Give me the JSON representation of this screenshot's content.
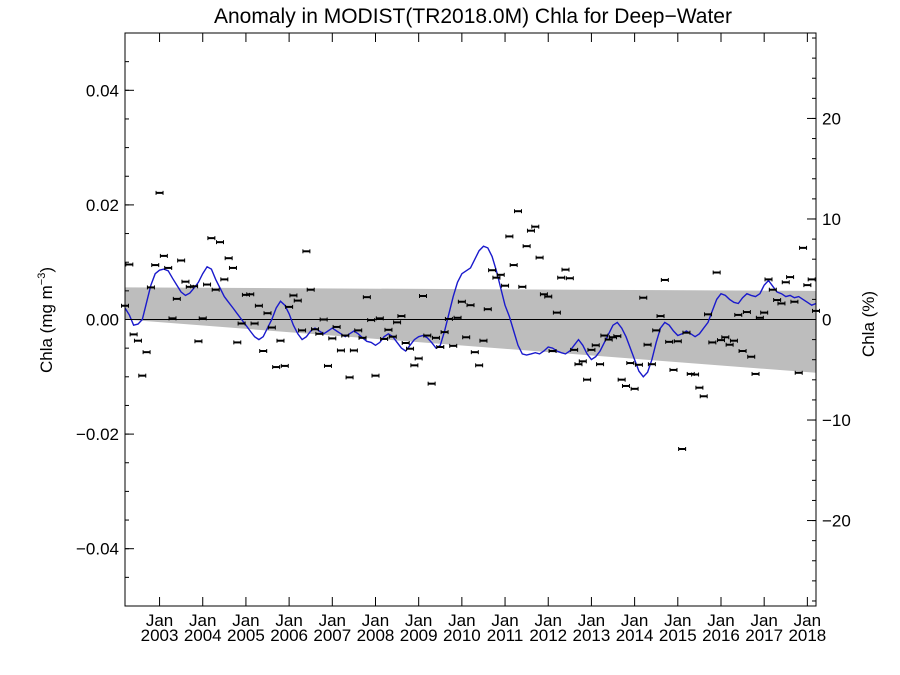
{
  "chart_data": {
    "type": "scatter",
    "title": "Anomaly in MODIST(TR2018.0M) Chla for Deep−Water",
    "ylabel_left": "Chla (mg m",
    "ylabel_left_unit_exp": "−3",
    "ylabel_left_close": ")",
    "ylabel_right": "Chla (%)",
    "xlabel": "",
    "xlim": [
      2002.2,
      2018.2
    ],
    "ylim_left": [
      -0.05,
      0.05
    ],
    "ylim_right": [
      -28.5,
      28.5
    ],
    "grid": false,
    "legend": "none",
    "zero_line": true,
    "yticks_left": [
      {
        "value": 0.04,
        "label": "0.04"
      },
      {
        "value": 0.02,
        "label": "0.02"
      },
      {
        "value": 0.0,
        "label": "0.00"
      },
      {
        "value": -0.02,
        "label": "−0.02"
      },
      {
        "value": -0.04,
        "label": "−0.04"
      }
    ],
    "yticks_right": [
      {
        "value": 20,
        "label": "20"
      },
      {
        "value": 10,
        "label": "10"
      },
      {
        "value": 0,
        "label": "0"
      },
      {
        "value": -10,
        "label": "−10"
      },
      {
        "value": -20,
        "label": "−20"
      }
    ],
    "xticks": [
      {
        "value": 2003.0,
        "month": "Jan",
        "year": "2003"
      },
      {
        "value": 2004.0,
        "month": "Jan",
        "year": "2004"
      },
      {
        "value": 2005.0,
        "month": "Jan",
        "year": "2005"
      },
      {
        "value": 2006.0,
        "month": "Jan",
        "year": "2006"
      },
      {
        "value": 2007.0,
        "month": "Jan",
        "year": "2007"
      },
      {
        "value": 2008.0,
        "month": "Jan",
        "year": "2008"
      },
      {
        "value": 2009.0,
        "month": "Jan",
        "year": "2009"
      },
      {
        "value": 2010.0,
        "month": "Jan",
        "year": "2010"
      },
      {
        "value": 2011.0,
        "month": "Jan",
        "year": "2011"
      },
      {
        "value": 2012.0,
        "month": "Jan",
        "year": "2012"
      },
      {
        "value": 2013.0,
        "month": "Jan",
        "year": "2013"
      },
      {
        "value": 2014.0,
        "month": "Jan",
        "year": "2014"
      },
      {
        "value": 2015.0,
        "month": "Jan",
        "year": "2015"
      },
      {
        "value": 2016.0,
        "month": "Jan",
        "year": "2016"
      },
      {
        "value": 2017.0,
        "month": "Jan",
        "year": "2017"
      },
      {
        "value": 2018.0,
        "month": "Jan",
        "year": "2018"
      }
    ],
    "trend_band": {
      "upper": [
        [
          2002.2,
          0.0056
        ],
        [
          2018.2,
          0.005
        ]
      ],
      "lower": [
        [
          2002.2,
          0.0
        ],
        [
          2018.2,
          -0.0093
        ]
      ]
    },
    "points": [
      [
        2002.2,
        0.0024
      ],
      [
        2002.3,
        0.0096
      ],
      [
        2002.4,
        -0.0026
      ],
      [
        2002.5,
        -0.0037
      ],
      [
        2002.6,
        -0.0098
      ],
      [
        2002.7,
        -0.0057
      ],
      [
        2002.8,
        0.0056
      ],
      [
        2002.9,
        0.0095
      ],
      [
        2003.0,
        0.0221
      ],
      [
        2003.1,
        0.0111
      ],
      [
        2003.2,
        0.009
      ],
      [
        2003.3,
        0.0002
      ],
      [
        2003.4,
        0.0036
      ],
      [
        2003.5,
        0.0103
      ],
      [
        2003.6,
        0.0066
      ],
      [
        2003.7,
        0.0057
      ],
      [
        2003.8,
        0.0058
      ],
      [
        2003.9,
        -0.0038
      ],
      [
        2004.0,
        0.0002
      ],
      [
        2004.1,
        0.0061
      ],
      [
        2004.2,
        0.0142
      ],
      [
        2004.3,
        0.0052
      ],
      [
        2004.4,
        0.0135
      ],
      [
        2004.5,
        0.007
      ],
      [
        2004.6,
        0.0107
      ],
      [
        2004.7,
        0.009
      ],
      [
        2004.8,
        -0.004
      ],
      [
        2004.9,
        -0.0007
      ],
      [
        2005.0,
        0.0043
      ],
      [
        2005.1,
        0.0044
      ],
      [
        2005.2,
        -0.0007
      ],
      [
        2005.3,
        0.0024
      ],
      [
        2005.4,
        -0.0055
      ],
      [
        2005.5,
        0.0011
      ],
      [
        2005.6,
        -0.0014
      ],
      [
        2005.7,
        -0.0083
      ],
      [
        2005.8,
        -0.0037
      ],
      [
        2005.9,
        -0.0081
      ],
      [
        2006.0,
        0.0022
      ],
      [
        2006.1,
        0.0042
      ],
      [
        2006.2,
        0.0033
      ],
      [
        2006.3,
        -0.0019
      ],
      [
        2006.4,
        0.0119
      ],
      [
        2006.5,
        0.0052
      ],
      [
        2006.6,
        -0.0017
      ],
      [
        2006.7,
        -0.0025
      ],
      [
        2006.8,
        0.0
      ],
      [
        2006.9,
        -0.0081
      ],
      [
        2007.0,
        -0.0033
      ],
      [
        2007.1,
        -0.0013
      ],
      [
        2007.2,
        -0.0054
      ],
      [
        2007.3,
        -0.0028
      ],
      [
        2007.4,
        -0.0101
      ],
      [
        2007.5,
        -0.0054
      ],
      [
        2007.6,
        -0.0019
      ],
      [
        2007.7,
        -0.0032
      ],
      [
        2007.8,
        0.0039
      ],
      [
        2007.9,
        -0.0001
      ],
      [
        2008.0,
        -0.0098
      ],
      [
        2008.1,
        0.0002
      ],
      [
        2008.2,
        -0.0034
      ],
      [
        2008.3,
        -0.0018
      ],
      [
        2008.4,
        -0.003
      ],
      [
        2008.5,
        -0.0005
      ],
      [
        2008.6,
        0.0006
      ],
      [
        2008.7,
        -0.0041
      ],
      [
        2008.8,
        -0.0051
      ],
      [
        2008.9,
        -0.008
      ],
      [
        2009.0,
        -0.0068
      ],
      [
        2009.1,
        0.0041
      ],
      [
        2009.2,
        -0.0028
      ],
      [
        2009.3,
        -0.0112
      ],
      [
        2009.4,
        -0.0032
      ],
      [
        2009.5,
        -0.0048
      ],
      [
        2009.6,
        -0.0022
      ],
      [
        2009.7,
        0.0001
      ],
      [
        2009.8,
        -0.0046
      ],
      [
        2009.9,
        0.0003
      ],
      [
        2010.0,
        0.0031
      ],
      [
        2010.1,
        -0.0031
      ],
      [
        2010.2,
        0.0025
      ],
      [
        2010.3,
        -0.0057
      ],
      [
        2010.4,
        -0.008
      ],
      [
        2010.5,
        -0.0037
      ],
      [
        2010.6,
        0.0018
      ],
      [
        2010.7,
        0.0086
      ],
      [
        2010.8,
        0.0073
      ],
      [
        2010.9,
        0.0078
      ],
      [
        2011.0,
        0.0059
      ],
      [
        2011.1,
        0.0145
      ],
      [
        2011.2,
        0.0095
      ],
      [
        2011.3,
        0.0189
      ],
      [
        2011.4,
        0.0057
      ],
      [
        2011.5,
        0.0128
      ],
      [
        2011.6,
        0.0155
      ],
      [
        2011.7,
        0.0162
      ],
      [
        2011.8,
        0.0108
      ],
      [
        2011.9,
        0.0044
      ],
      [
        2012.0,
        0.004
      ],
      [
        2012.1,
        -0.0055
      ],
      [
        2012.2,
        0.0012
      ],
      [
        2012.3,
        0.0073
      ],
      [
        2012.4,
        0.0087
      ],
      [
        2012.5,
        0.0072
      ],
      [
        2012.6,
        -0.0053
      ],
      [
        2012.7,
        -0.0078
      ],
      [
        2012.8,
        -0.0073
      ],
      [
        2012.9,
        -0.0105
      ],
      [
        2013.0,
        -0.0053
      ],
      [
        2013.1,
        -0.0045
      ],
      [
        2013.2,
        -0.0078
      ],
      [
        2013.3,
        -0.0028
      ],
      [
        2013.4,
        -0.0035
      ],
      [
        2013.5,
        -0.0031
      ],
      [
        2013.6,
        -0.0029
      ],
      [
        2013.7,
        -0.0105
      ],
      [
        2013.8,
        -0.0116
      ],
      [
        2013.9,
        -0.0076
      ],
      [
        2014.0,
        -0.0121
      ],
      [
        2014.1,
        -0.0079
      ],
      [
        2014.2,
        0.0038
      ],
      [
        2014.3,
        -0.0044
      ],
      [
        2014.4,
        -0.0078
      ],
      [
        2014.5,
        -0.0019
      ],
      [
        2014.6,
        0.0006
      ],
      [
        2014.7,
        0.0069
      ],
      [
        2014.8,
        -0.0039
      ],
      [
        2014.9,
        -0.0088
      ],
      [
        2015.0,
        -0.0038
      ],
      [
        2015.1,
        -0.0226
      ],
      [
        2015.2,
        -0.0023
      ],
      [
        2015.3,
        -0.0095
      ],
      [
        2015.4,
        -0.0096
      ],
      [
        2015.5,
        -0.0119
      ],
      [
        2015.6,
        -0.0134
      ],
      [
        2015.7,
        0.0009
      ],
      [
        2015.8,
        -0.004
      ],
      [
        2015.9,
        0.0082
      ],
      [
        2016.0,
        -0.0036
      ],
      [
        2016.1,
        -0.0031
      ],
      [
        2016.2,
        -0.0044
      ],
      [
        2016.3,
        -0.0037
      ],
      [
        2016.4,
        0.0008
      ],
      [
        2016.5,
        -0.0055
      ],
      [
        2016.6,
        0.0013
      ],
      [
        2016.7,
        -0.0065
      ],
      [
        2016.8,
        -0.0095
      ],
      [
        2016.9,
        0.0003
      ],
      [
        2017.0,
        0.0012
      ],
      [
        2017.1,
        0.007
      ],
      [
        2017.2,
        0.0052
      ],
      [
        2017.3,
        0.0034
      ],
      [
        2017.4,
        0.0028
      ],
      [
        2017.5,
        0.0065
      ],
      [
        2017.6,
        0.0074
      ],
      [
        2017.7,
        0.0031
      ],
      [
        2017.8,
        -0.0093
      ],
      [
        2017.9,
        0.0125
      ],
      [
        2018.0,
        0.006
      ],
      [
        2018.1,
        0.007
      ],
      [
        2018.2,
        0.0015
      ]
    ],
    "smoothed_line": [
      [
        2002.2,
        0.002
      ],
      [
        2002.3,
        0.0008
      ],
      [
        2002.4,
        -0.001
      ],
      [
        2002.5,
        -0.0008
      ],
      [
        2002.6,
        0.0
      ],
      [
        2002.7,
        0.003
      ],
      [
        2002.8,
        0.006
      ],
      [
        2002.9,
        0.008
      ],
      [
        2003.0,
        0.0086
      ],
      [
        2003.1,
        0.0088
      ],
      [
        2003.2,
        0.0085
      ],
      [
        2003.3,
        0.0072
      ],
      [
        2003.4,
        0.006
      ],
      [
        2003.5,
        0.0048
      ],
      [
        2003.6,
        0.0042
      ],
      [
        2003.7,
        0.0046
      ],
      [
        2003.8,
        0.0055
      ],
      [
        2003.9,
        0.0065
      ],
      [
        2004.0,
        0.008
      ],
      [
        2004.1,
        0.0092
      ],
      [
        2004.2,
        0.0088
      ],
      [
        2004.3,
        0.007
      ],
      [
        2004.4,
        0.0055
      ],
      [
        2004.5,
        0.004
      ],
      [
        2004.6,
        0.003
      ],
      [
        2004.7,
        0.002
      ],
      [
        2004.8,
        0.001
      ],
      [
        2004.9,
        0.0
      ],
      [
        2005.0,
        -0.001
      ],
      [
        2005.1,
        -0.002
      ],
      [
        2005.2,
        -0.003
      ],
      [
        2005.3,
        -0.0035
      ],
      [
        2005.4,
        -0.003
      ],
      [
        2005.5,
        -0.0015
      ],
      [
        2005.6,
        0.0
      ],
      [
        2005.7,
        0.002
      ],
      [
        2005.8,
        0.0032
      ],
      [
        2005.9,
        0.0025
      ],
      [
        2006.0,
        0.001
      ],
      [
        2006.1,
        -0.001
      ],
      [
        2006.2,
        -0.0025
      ],
      [
        2006.3,
        -0.0035
      ],
      [
        2006.4,
        -0.003
      ],
      [
        2006.5,
        -0.002
      ],
      [
        2006.6,
        -0.0015
      ],
      [
        2006.7,
        -0.002
      ],
      [
        2006.8,
        -0.0025
      ],
      [
        2006.9,
        -0.002
      ],
      [
        2007.0,
        -0.0015
      ],
      [
        2007.1,
        -0.002
      ],
      [
        2007.2,
        -0.0025
      ],
      [
        2007.3,
        -0.003
      ],
      [
        2007.4,
        -0.0025
      ],
      [
        2007.5,
        -0.002
      ],
      [
        2007.6,
        -0.0025
      ],
      [
        2007.7,
        -0.0032
      ],
      [
        2007.8,
        -0.0038
      ],
      [
        2007.9,
        -0.004
      ],
      [
        2008.0,
        -0.0045
      ],
      [
        2008.1,
        -0.004
      ],
      [
        2008.2,
        -0.003
      ],
      [
        2008.3,
        -0.0025
      ],
      [
        2008.4,
        -0.003
      ],
      [
        2008.5,
        -0.004
      ],
      [
        2008.6,
        -0.005
      ],
      [
        2008.7,
        -0.0055
      ],
      [
        2008.8,
        -0.0045
      ],
      [
        2008.9,
        -0.0035
      ],
      [
        2009.0,
        -0.003
      ],
      [
        2009.1,
        -0.0028
      ],
      [
        2009.2,
        -0.0032
      ],
      [
        2009.3,
        -0.004
      ],
      [
        2009.4,
        -0.005
      ],
      [
        2009.5,
        -0.0045
      ],
      [
        2009.6,
        -0.002
      ],
      [
        2009.7,
        0.001
      ],
      [
        2009.8,
        0.004
      ],
      [
        2009.9,
        0.0065
      ],
      [
        2010.0,
        0.008
      ],
      [
        2010.1,
        0.0085
      ],
      [
        2010.2,
        0.009
      ],
      [
        2010.3,
        0.0105
      ],
      [
        2010.4,
        0.012
      ],
      [
        2010.5,
        0.0128
      ],
      [
        2010.6,
        0.0125
      ],
      [
        2010.7,
        0.011
      ],
      [
        2010.8,
        0.0085
      ],
      [
        2010.9,
        0.0055
      ],
      [
        2011.0,
        0.0025
      ],
      [
        2011.1,
        0.0005
      ],
      [
        2011.2,
        -0.002
      ],
      [
        2011.3,
        -0.0045
      ],
      [
        2011.4,
        -0.006
      ],
      [
        2011.5,
        -0.0062
      ],
      [
        2011.6,
        -0.006
      ],
      [
        2011.7,
        -0.0058
      ],
      [
        2011.8,
        -0.006
      ],
      [
        2011.9,
        -0.0055
      ],
      [
        2012.0,
        -0.0048
      ],
      [
        2012.1,
        -0.005
      ],
      [
        2012.2,
        -0.0055
      ],
      [
        2012.3,
        -0.0058
      ],
      [
        2012.4,
        -0.006
      ],
      [
        2012.5,
        -0.0055
      ],
      [
        2012.6,
        -0.0045
      ],
      [
        2012.7,
        -0.0035
      ],
      [
        2012.8,
        -0.0045
      ],
      [
        2012.9,
        -0.006
      ],
      [
        2013.0,
        -0.007
      ],
      [
        2013.1,
        -0.0065
      ],
      [
        2013.2,
        -0.0055
      ],
      [
        2013.3,
        -0.004
      ],
      [
        2013.4,
        -0.0025
      ],
      [
        2013.5,
        -0.001
      ],
      [
        2013.6,
        -0.0005
      ],
      [
        2013.7,
        -0.0015
      ],
      [
        2013.8,
        -0.003
      ],
      [
        2013.9,
        -0.005
      ],
      [
        2014.0,
        -0.007
      ],
      [
        2014.1,
        -0.009
      ],
      [
        2014.2,
        -0.01
      ],
      [
        2014.3,
        -0.0092
      ],
      [
        2014.4,
        -0.007
      ],
      [
        2014.5,
        -0.004
      ],
      [
        2014.6,
        -0.0015
      ],
      [
        2014.7,
        -0.0005
      ],
      [
        2014.8,
        -0.001
      ],
      [
        2014.9,
        -0.002
      ],
      [
        2015.0,
        -0.0028
      ],
      [
        2015.1,
        -0.0025
      ],
      [
        2015.2,
        -0.002
      ],
      [
        2015.3,
        -0.0025
      ],
      [
        2015.4,
        -0.003
      ],
      [
        2015.5,
        -0.0025
      ],
      [
        2015.6,
        -0.0015
      ],
      [
        2015.7,
        -0.0005
      ],
      [
        2015.8,
        0.0015
      ],
      [
        2015.9,
        0.0035
      ],
      [
        2016.0,
        0.0045
      ],
      [
        2016.1,
        0.0042
      ],
      [
        2016.2,
        0.0035
      ],
      [
        2016.3,
        0.003
      ],
      [
        2016.4,
        0.0028
      ],
      [
        2016.5,
        0.0038
      ],
      [
        2016.6,
        0.0045
      ],
      [
        2016.7,
        0.0042
      ],
      [
        2016.8,
        0.004
      ],
      [
        2016.9,
        0.0045
      ],
      [
        2017.0,
        0.006
      ],
      [
        2017.1,
        0.0068
      ],
      [
        2017.2,
        0.0058
      ],
      [
        2017.3,
        0.0048
      ],
      [
        2017.4,
        0.0045
      ],
      [
        2017.5,
        0.004
      ],
      [
        2017.6,
        0.0042
      ],
      [
        2017.7,
        0.0038
      ],
      [
        2017.8,
        0.004
      ],
      [
        2017.9,
        0.0035
      ],
      [
        2018.0,
        0.003
      ],
      [
        2018.1,
        0.0025
      ],
      [
        2018.2,
        0.0028
      ]
    ],
    "colors": {
      "series_line": "#1a1acc",
      "band": "#bdbdbd",
      "markers": "#000000",
      "axes": "#000000"
    }
  }
}
